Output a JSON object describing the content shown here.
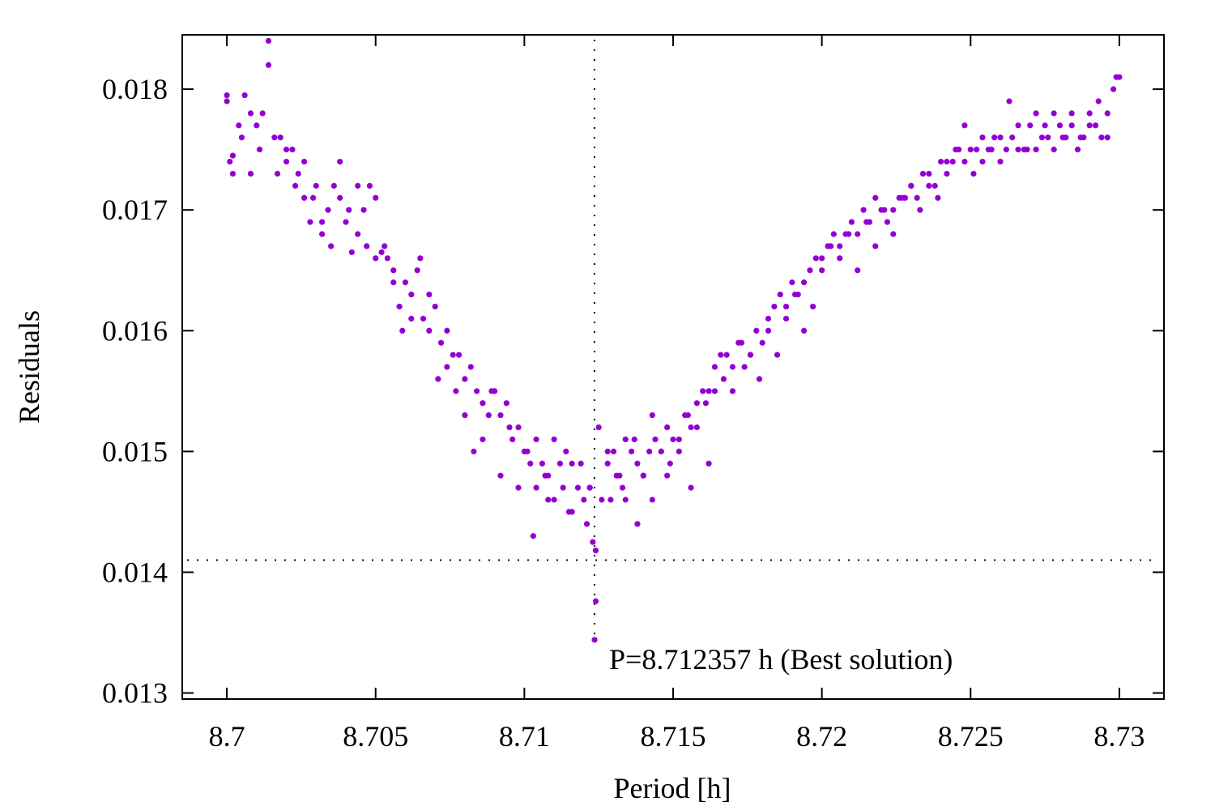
{
  "chart_data": {
    "type": "scatter",
    "title": "",
    "xlabel": "Period [h]",
    "ylabel": "Residuals",
    "xlim": [
      8.6985,
      8.7315
    ],
    "ylim": [
      0.01295,
      0.01845
    ],
    "xticks": [
      8.7,
      8.705,
      8.71,
      8.715,
      8.72,
      8.725,
      8.73
    ],
    "xtick_labels": [
      "8.7",
      "8.705",
      "8.71",
      "8.715",
      "8.72",
      "8.725",
      "8.73"
    ],
    "yticks": [
      0.013,
      0.014,
      0.015,
      0.016,
      0.017,
      0.018
    ],
    "ytick_labels": [
      "0.013",
      "0.014",
      "0.015",
      "0.016",
      "0.017",
      "0.018"
    ],
    "grid": false,
    "point_color": "#9400d3",
    "best_solution": {
      "period": 8.712357,
      "residual": 0.01344,
      "label": "P=8.712357 h (Best solution)"
    },
    "threshold_residual": 0.0141,
    "series": [
      {
        "name": "residuals",
        "x": [
          8.7,
          8.7001,
          8.7002,
          8.7004,
          8.7006,
          8.7008,
          8.701,
          8.7012,
          8.7014,
          8.7016,
          8.7018,
          8.702,
          8.7022,
          8.7024,
          8.7026,
          8.7028,
          8.703,
          8.7032,
          8.7034,
          8.7036,
          8.7038,
          8.704,
          8.7042,
          8.7044,
          8.7046,
          8.7048,
          8.705,
          8.7052,
          8.7054,
          8.7056,
          8.7058,
          8.706,
          8.7062,
          8.7064,
          8.7066,
          8.7068,
          8.707,
          8.7072,
          8.7074,
          8.7076,
          8.7078,
          8.708,
          8.7082,
          8.7084,
          8.7086,
          8.7088,
          8.709,
          8.7092,
          8.7094,
          8.7096,
          8.7098,
          8.71,
          8.7102,
          8.7104,
          8.7106,
          8.7108,
          8.711,
          8.7112,
          8.7114,
          8.7116,
          8.7118,
          8.712,
          8.7122,
          8.71236,
          8.7126,
          8.7128,
          8.713,
          8.7132,
          8.7134,
          8.7136,
          8.7138,
          8.714,
          8.7142,
          8.7144,
          8.7146,
          8.7148,
          8.715,
          8.7152,
          8.7154,
          8.7156,
          8.7158,
          8.716,
          8.7162,
          8.7164,
          8.7166,
          8.7168,
          8.717,
          8.7172,
          8.7174,
          8.7176,
          8.7178,
          8.718,
          8.7182,
          8.7184,
          8.7186,
          8.7188,
          8.719,
          8.7192,
          8.7194,
          8.7196,
          8.7198,
          8.72,
          8.7202,
          8.7204,
          8.7206,
          8.7208,
          8.721,
          8.7212,
          8.7214,
          8.7216,
          8.7218,
          8.722,
          8.7222,
          8.7224,
          8.7226,
          8.7228,
          8.723,
          8.7232,
          8.7234,
          8.7236,
          8.7238,
          8.724,
          8.7242,
          8.7244,
          8.7246,
          8.7248,
          8.725,
          8.7252,
          8.7254,
          8.7256,
          8.7258,
          8.726,
          8.7262,
          8.7264,
          8.7266,
          8.7268,
          8.727,
          8.7272,
          8.7274,
          8.7276,
          8.7278,
          8.728,
          8.7282,
          8.7284,
          8.7286,
          8.7288,
          8.729,
          8.7292,
          8.7294,
          8.7296,
          8.7298,
          8.73,
          8.7,
          8.7002,
          8.7005,
          8.7008,
          8.7011,
          8.7014,
          8.7017,
          8.702,
          8.7023,
          8.7026,
          8.7029,
          8.7032,
          8.7035,
          8.7038,
          8.7041,
          8.7044,
          8.7047,
          8.705,
          8.7053,
          8.7056,
          8.7059,
          8.7062,
          8.7065,
          8.7068,
          8.7071,
          8.7074,
          8.7077,
          8.708,
          8.7083,
          8.7086,
          8.7089,
          8.7092,
          8.7095,
          8.7098,
          8.7101,
          8.7104,
          8.7107,
          8.711,
          8.7113,
          8.7116,
          8.7119,
          8.7122,
          8.7125,
          8.7128,
          8.7131,
          8.7134,
          8.7137,
          8.714,
          8.7143,
          8.7146,
          8.7149,
          8.7152,
          8.7155,
          8.7158,
          8.7161,
          8.7164,
          8.7167,
          8.717,
          8.7173,
          8.7176,
          8.7179,
          8.7182,
          8.7185,
          8.7188,
          8.7191,
          8.7194,
          8.7197,
          8.72,
          8.7203,
          8.7206,
          8.7209,
          8.7212,
          8.7215,
          8.7218,
          8.7221,
          8.7224,
          8.7227,
          8.723,
          8.7233,
          8.7236,
          8.7239,
          8.7242,
          8.7245,
          8.7248,
          8.7251,
          8.7254,
          8.7257,
          8.726,
          8.7263,
          8.7266,
          8.7269,
          8.7272,
          8.7275,
          8.7278,
          8.7281,
          8.7284,
          8.7287,
          8.729,
          8.7293,
          8.7296,
          8.7299,
          8.7103,
          8.7108,
          8.7115,
          8.7121,
          8.7123,
          8.7129,
          8.7133,
          8.7138,
          8.7143,
          8.7148,
          8.7156,
          8.7162,
          8.7124,
          8.7124
        ],
        "y": [
          0.01795,
          0.0174,
          0.01745,
          0.0177,
          0.01795,
          0.0173,
          0.0177,
          0.0178,
          0.0184,
          0.0176,
          0.0176,
          0.0174,
          0.0175,
          0.0173,
          0.0171,
          0.0169,
          0.0172,
          0.0169,
          0.017,
          0.0172,
          0.0171,
          0.0169,
          0.01665,
          0.0168,
          0.017,
          0.0172,
          0.0171,
          0.01665,
          0.0166,
          0.0165,
          0.0162,
          0.0164,
          0.0163,
          0.0165,
          0.0161,
          0.0163,
          0.0162,
          0.0159,
          0.016,
          0.0158,
          0.0158,
          0.0156,
          0.0157,
          0.0155,
          0.0154,
          0.0153,
          0.0155,
          0.0153,
          0.0154,
          0.0151,
          0.0152,
          0.015,
          0.0149,
          0.0151,
          0.0149,
          0.0148,
          0.0151,
          0.0149,
          0.015,
          0.0149,
          0.0147,
          0.0146,
          0.0147,
          0.01344,
          0.0146,
          0.0149,
          0.015,
          0.0148,
          0.0151,
          0.015,
          0.0149,
          0.0148,
          0.015,
          0.0151,
          0.015,
          0.0152,
          0.0151,
          0.015,
          0.0153,
          0.0152,
          0.0154,
          0.0155,
          0.0155,
          0.0157,
          0.0158,
          0.0158,
          0.0157,
          0.0159,
          0.0157,
          0.0158,
          0.016,
          0.0159,
          0.0161,
          0.0162,
          0.0163,
          0.0162,
          0.0164,
          0.0163,
          0.0164,
          0.0165,
          0.0166,
          0.0166,
          0.0167,
          0.0168,
          0.0167,
          0.0168,
          0.0169,
          0.0168,
          0.017,
          0.0169,
          0.0171,
          0.017,
          0.0169,
          0.017,
          0.0171,
          0.0171,
          0.0172,
          0.0171,
          0.0173,
          0.0172,
          0.0172,
          0.0174,
          0.0173,
          0.0174,
          0.0175,
          0.0174,
          0.0175,
          0.0175,
          0.0174,
          0.0175,
          0.0176,
          0.0176,
          0.0175,
          0.0176,
          0.0175,
          0.0175,
          0.0177,
          0.0175,
          0.0176,
          0.0176,
          0.0178,
          0.0177,
          0.0176,
          0.0177,
          0.0175,
          0.0176,
          0.0178,
          0.0177,
          0.0176,
          0.0178,
          0.018,
          0.0181,
          0.0179,
          0.0173,
          0.0176,
          0.0178,
          0.0175,
          0.0182,
          0.0173,
          0.0175,
          0.0172,
          0.0174,
          0.0171,
          0.0168,
          0.0167,
          0.0174,
          0.017,
          0.0172,
          0.0167,
          0.0166,
          0.0167,
          0.0164,
          0.016,
          0.0161,
          0.0166,
          0.016,
          0.0156,
          0.0157,
          0.0155,
          0.0153,
          0.015,
          0.0151,
          0.0155,
          0.0148,
          0.0152,
          0.0147,
          0.015,
          0.0147,
          0.0148,
          0.0146,
          0.0147,
          0.0145,
          0.0149,
          0.0147,
          0.0152,
          0.015,
          0.0148,
          0.0146,
          0.0151,
          0.0148,
          0.0153,
          0.015,
          0.0149,
          0.0151,
          0.0153,
          0.0152,
          0.0154,
          0.0155,
          0.0156,
          0.0155,
          0.0159,
          0.0158,
          0.0156,
          0.016,
          0.0158,
          0.0161,
          0.0163,
          0.016,
          0.0162,
          0.0165,
          0.0167,
          0.0166,
          0.0168,
          0.0165,
          0.0169,
          0.0167,
          0.017,
          0.0168,
          0.0171,
          0.0172,
          0.017,
          0.0173,
          0.0171,
          0.0174,
          0.0175,
          0.0177,
          0.0173,
          0.0176,
          0.0175,
          0.0174,
          0.0179,
          0.0177,
          0.0175,
          0.0178,
          0.0177,
          0.0175,
          0.0176,
          0.0178,
          0.0176,
          0.0177,
          0.0179,
          0.0176,
          0.0181,
          0.0143,
          0.0146,
          0.0145,
          0.0144,
          0.01425,
          0.0146,
          0.0147,
          0.0144,
          0.0146,
          0.0148,
          0.0147,
          0.0149,
          0.01376,
          0.01418
        ]
      }
    ]
  }
}
